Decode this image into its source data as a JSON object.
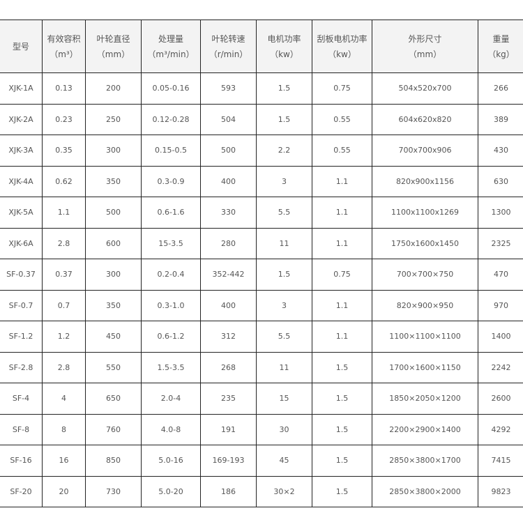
{
  "headers": [
    {
      "label": "型号",
      "unit": ""
    },
    {
      "label": "有效容积",
      "unit": "（m³）"
    },
    {
      "label": "叶轮直径",
      "unit": "（mm）"
    },
    {
      "label": "处理量",
      "unit": "（m³/min）"
    },
    {
      "label": "叶轮转速",
      "unit": "（r/min）"
    },
    {
      "label": "电机功率",
      "unit": "（kw）"
    },
    {
      "label": "刮板电机功率",
      "unit": "（kw）"
    },
    {
      "label": "外形尺寸",
      "unit": "（mm）"
    },
    {
      "label": "重量",
      "unit": "（kg）"
    }
  ],
  "rows": [
    [
      "XJK-1A",
      "0.13",
      "200",
      "0.05-0.16",
      "593",
      "1.5",
      "0.75",
      "504x520x700",
      "266"
    ],
    [
      "XJK-2A",
      "0.23",
      "250",
      "0.12-0.28",
      "504",
      "1.5",
      "0.55",
      "604x620x820",
      "389"
    ],
    [
      "XJK-3A",
      "0.35",
      "300",
      "0.15-0.5",
      "500",
      "2.2",
      "0.55",
      "700x700x906",
      "430"
    ],
    [
      "XJK-4A",
      "0.62",
      "350",
      "0.3-0.9",
      "400",
      "3",
      "1.1",
      "820x900x1156",
      "630"
    ],
    [
      "XJK-5A",
      "1.1",
      "500",
      "0.6-1.6",
      "330",
      "5.5",
      "1.1",
      "1100x1100x1269",
      "1300"
    ],
    [
      "XJK-6A",
      "2.8",
      "600",
      "15-3.5",
      "280",
      "11",
      "1.1",
      "1750x1600x1450",
      "2325"
    ],
    [
      "SF-0.37",
      "0.37",
      "300",
      "0.2-0.4",
      "352-442",
      "1.5",
      "0.75",
      "700×700×750",
      "470"
    ],
    [
      "SF-0.7",
      "0.7",
      "350",
      "0.3-1.0",
      "400",
      "3",
      "1.1",
      "820×900×950",
      "970"
    ],
    [
      "SF-1.2",
      "1.2",
      "450",
      "0.6-1.2",
      "312",
      "5.5",
      "1.1",
      "1100×1100×1100",
      "1400"
    ],
    [
      "SF-2.8",
      "2.8",
      "550",
      "1.5-3.5",
      "268",
      "11",
      "1.5",
      "1700×1600×1150",
      "2242"
    ],
    [
      "SF-4",
      "4",
      "650",
      "2.0-4",
      "235",
      "15",
      "1.5",
      "1850×2050×1200",
      "2600"
    ],
    [
      "SF-8",
      "8",
      "760",
      "4.0-8",
      "191",
      "30",
      "1.5",
      "2200×2900×1400",
      "4292"
    ],
    [
      "SF-16",
      "16",
      "850",
      "5.0-16",
      "169-193",
      "45",
      "1.5",
      "2850×3800×1700",
      "7415"
    ],
    [
      "SF-20",
      "20",
      "730",
      "5.0-20",
      "186",
      "30×2",
      "1.5",
      "2850×3800×2000",
      "9823"
    ]
  ]
}
